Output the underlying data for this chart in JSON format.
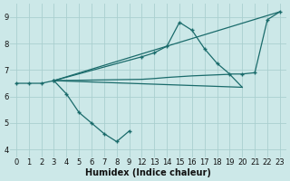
{
  "background_color": "#cce8e8",
  "grid_color": "#aacfcf",
  "line_color": "#1a6b6b",
  "series1_x": [
    0,
    1,
    2,
    3,
    4,
    5,
    6,
    7,
    8,
    9
  ],
  "series1_y": [
    6.5,
    6.5,
    6.5,
    6.6,
    6.1,
    5.4,
    5.0,
    4.6,
    4.3,
    4.7
  ],
  "series2_x": [
    3,
    12,
    13,
    14,
    15,
    16,
    17,
    18,
    19,
    20,
    21,
    22,
    23
  ],
  "series2_y": [
    6.6,
    7.5,
    7.65,
    7.9,
    8.8,
    8.5,
    7.8,
    7.25,
    6.85,
    6.85,
    6.9,
    8.9,
    9.2
  ],
  "series3_x": [
    3,
    23
  ],
  "series3_y": [
    6.6,
    9.2
  ],
  "series4_x": [
    3,
    12,
    13,
    14,
    15,
    16,
    17,
    18,
    19,
    20
  ],
  "series4_y": [
    6.6,
    6.65,
    6.68,
    6.72,
    6.75,
    6.78,
    6.8,
    6.82,
    6.84,
    6.35
  ],
  "series5_x": [
    3,
    20
  ],
  "series5_y": [
    6.6,
    6.35
  ],
  "xtick_positions": [
    0,
    1,
    2,
    3,
    4,
    5,
    6,
    7,
    8,
    9,
    12,
    13,
    14,
    15,
    16,
    17,
    18,
    19,
    20,
    21,
    22,
    23
  ],
  "xtick_labels": [
    "0",
    "1",
    "2",
    "3",
    "4",
    "5",
    "6",
    "7",
    "8",
    "9",
    "12",
    "13",
    "14",
    "15",
    "16",
    "17",
    "18",
    "19",
    "20",
    "21",
    "22",
    "23"
  ],
  "yticks": [
    4,
    5,
    6,
    7,
    8,
    9
  ],
  "xlim": [
    -0.5,
    23.5
  ],
  "ylim": [
    3.7,
    9.5
  ],
  "xlabel": "Humidex (Indice chaleur)",
  "xlabel_fontsize": 7,
  "tick_fontsize": 6
}
